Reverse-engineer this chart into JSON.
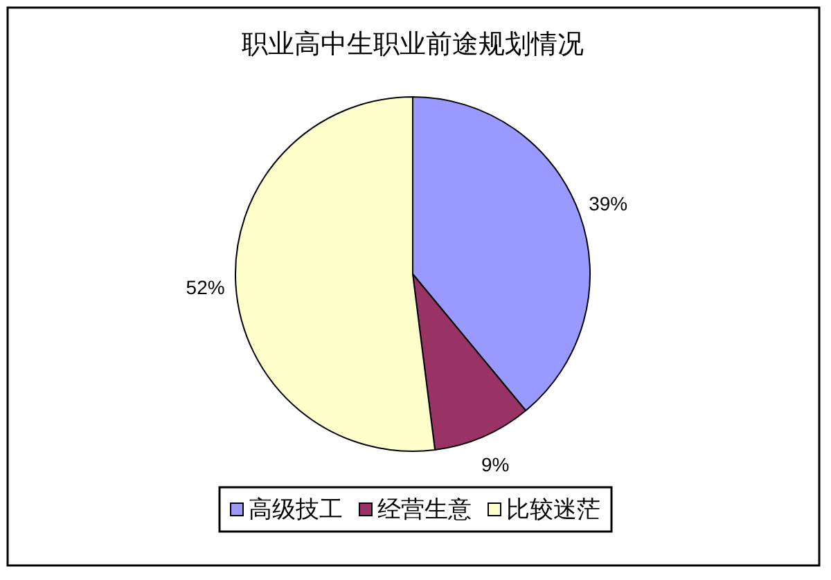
{
  "chart_data": {
    "type": "pie",
    "title": "职业高中生职业前途规划情况",
    "categories": [
      "高级技工",
      "经营生意",
      "比较迷茫"
    ],
    "values": [
      39,
      9,
      52
    ],
    "colors": [
      "#9999ff",
      "#993366",
      "#ffffcc"
    ],
    "value_labels": [
      "39%",
      "9%",
      "52%"
    ],
    "legend": "bottom"
  }
}
